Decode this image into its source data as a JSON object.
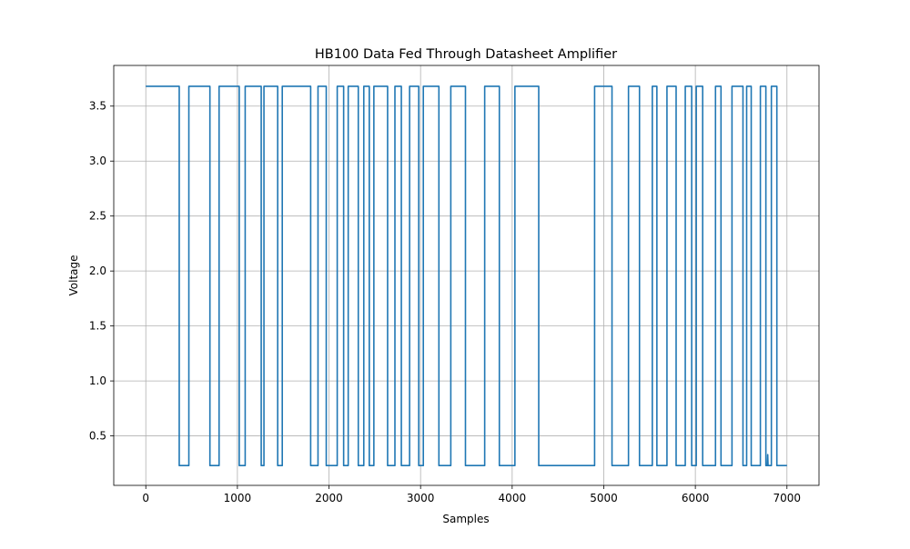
{
  "chart_data": {
    "type": "line",
    "title": "HB100 Data Fed Through Datasheet Amplifier",
    "xlabel": "Samples",
    "ylabel": "Voltage",
    "xlim": [
      -350,
      7350
    ],
    "ylim": [
      0.05,
      3.87
    ],
    "xticks": [
      0,
      1000,
      2000,
      3000,
      4000,
      5000,
      6000,
      7000
    ],
    "xtick_labels": [
      "0",
      "1000",
      "2000",
      "3000",
      "4000",
      "5000",
      "6000",
      "7000"
    ],
    "yticks": [
      0.5,
      1.0,
      1.5,
      2.0,
      2.5,
      3.0,
      3.5
    ],
    "ytick_labels": [
      "0.5",
      "1.0",
      "1.5",
      "2.0",
      "2.5",
      "3.0",
      "3.5"
    ],
    "grid": true,
    "legend": "none",
    "series_color": "#1f77b4",
    "series": [
      {
        "high_level": 3.68,
        "low_level": 0.23,
        "x_range": [
          0,
          7000
        ],
        "high_intervals": [
          [
            0,
            365
          ],
          [
            470,
            700
          ],
          [
            800,
            1020
          ],
          [
            1085,
            1260
          ],
          [
            1290,
            1440
          ],
          [
            1490,
            1800
          ],
          [
            1880,
            1970
          ],
          [
            2090,
            2160
          ],
          [
            2210,
            2320
          ],
          [
            2380,
            2440
          ],
          [
            2490,
            2640
          ],
          [
            2720,
            2790
          ],
          [
            2880,
            2980
          ],
          [
            3030,
            3200
          ],
          [
            3330,
            3490
          ],
          [
            3700,
            3860
          ],
          [
            4030,
            4290
          ],
          [
            4900,
            5090
          ],
          [
            5270,
            5390
          ],
          [
            5530,
            5580
          ],
          [
            5690,
            5790
          ],
          [
            5890,
            5960
          ],
          [
            6010,
            6080
          ],
          [
            6220,
            6280
          ],
          [
            6400,
            6520
          ],
          [
            6560,
            6610
          ],
          [
            6710,
            6770
          ],
          [
            6830,
            6890
          ]
        ],
        "spikes": [
          [
            6790,
            0.33
          ]
        ]
      }
    ]
  }
}
